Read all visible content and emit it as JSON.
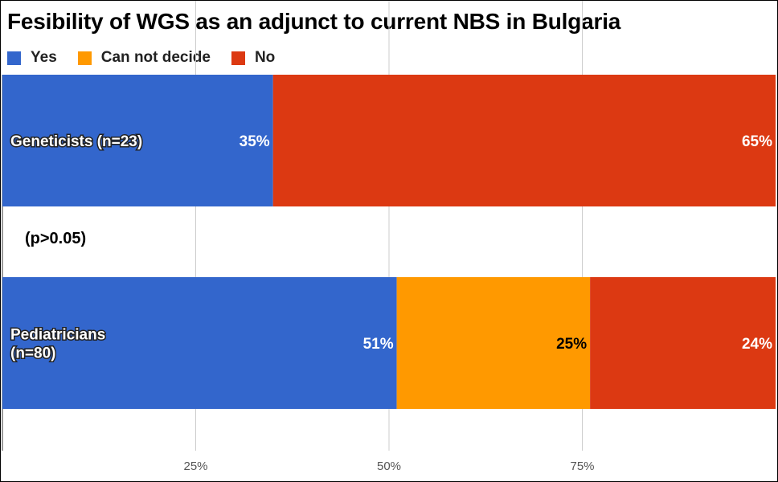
{
  "chart_data": {
    "type": "bar",
    "orientation": "horizontal",
    "stacked": true,
    "title": "Fesibility of WGS as an adjunct to current NBS in Bulgaria",
    "categories": [
      "Geneticists (n=23)",
      "Pediatricians (n=80)"
    ],
    "series": [
      {
        "name": "Yes",
        "values": [
          35,
          51
        ],
        "color": "#3366cc",
        "value_labels": [
          "35%",
          "51%"
        ]
      },
      {
        "name": "Can not decide",
        "values": [
          0,
          25
        ],
        "color": "#ff9900",
        "value_labels": [
          "0%",
          "25%"
        ]
      },
      {
        "name": "No",
        "values": [
          65,
          24
        ],
        "color": "#dc3912",
        "value_labels": [
          "65%",
          "24%"
        ]
      }
    ],
    "xlim": [
      0,
      100
    ],
    "x_ticks": [
      25,
      50,
      75
    ],
    "x_tick_labels": [
      "25%",
      "50%",
      "75%"
    ],
    "grid": true,
    "legend_position": "top-left",
    "annotation": "(p>0.05)"
  }
}
